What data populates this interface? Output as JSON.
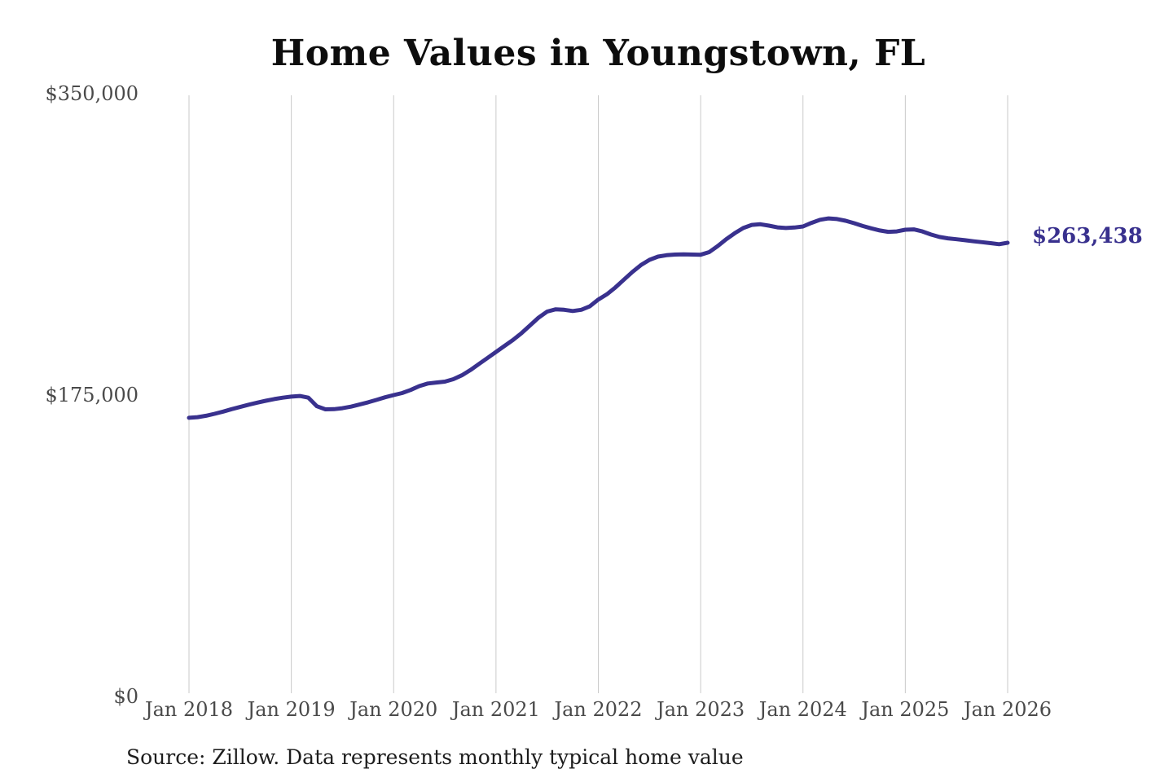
{
  "page": {
    "background": "#ffffff"
  },
  "chart_data": {
    "type": "line",
    "title": "Home Values in Youngstown, FL",
    "source_note": "Source: Zillow. Data represents monthly typical home value",
    "end_label": "$263,438",
    "latest_value": 263438,
    "xlabel": "",
    "ylabel": "",
    "ylim": [
      0,
      350000
    ],
    "grid": "vertical",
    "legend": "none",
    "y_tick_labels": [
      {
        "label": "$350,000",
        "value": 350000
      },
      {
        "label": "$175,000",
        "value": 175000
      },
      {
        "label": "$0",
        "value": 0
      }
    ],
    "x_tick_labels": [
      "Jan 2018",
      "Jan 2019",
      "Jan 2020",
      "Jan 2021",
      "Jan 2022",
      "Jan 2023",
      "Jan 2024",
      "Jan 2025",
      "Jan 2026"
    ],
    "series": [
      {
        "name": "Monthly typical home value",
        "interval": "monthly",
        "start_month": "2018-01",
        "end_month": "2026-01",
        "color": "#39318e",
        "values": [
          161800,
          162200,
          163000,
          164100,
          165400,
          166800,
          168100,
          169400,
          170600,
          171700,
          172700,
          173500,
          174100,
          174500,
          173500,
          168500,
          166700,
          166800,
          167400,
          168300,
          169500,
          170800,
          172200,
          173700,
          175000,
          176200,
          178000,
          180200,
          181700,
          182300,
          182800,
          184200,
          186500,
          189500,
          193000,
          196500,
          200000,
          203500,
          207000,
          211000,
          215500,
          220000,
          223500,
          224800,
          224500,
          223800,
          224500,
          226500,
          230500,
          233500,
          237500,
          242000,
          246500,
          250500,
          253500,
          255400,
          256200,
          256600,
          256700,
          256600,
          256500,
          258000,
          261500,
          265500,
          269000,
          272000,
          273800,
          274200,
          273400,
          272400,
          272000,
          272300,
          272900,
          275000,
          276800,
          277600,
          277200,
          276200,
          274800,
          273200,
          271800,
          270600,
          269800,
          270000,
          271000,
          271200,
          270000,
          268200,
          266800,
          266000,
          265500,
          264900,
          264300,
          263800,
          263200,
          262600,
          263438
        ]
      }
    ],
    "colors": {
      "line": "#39318e",
      "grid": "#cacaca",
      "axis_text": "#4a4a4a",
      "title_text": "#0d0d0d",
      "source_text": "#1d1d1d"
    }
  }
}
